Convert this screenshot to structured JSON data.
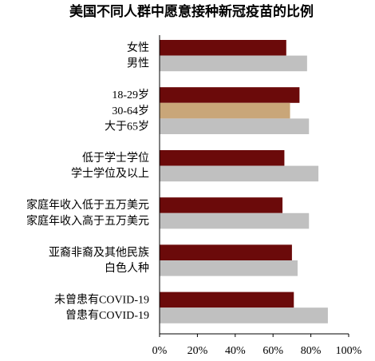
{
  "chart_data": {
    "type": "bar",
    "orientation": "horizontal",
    "title": "美国不同人群中愿意接种新冠疫苗的比例",
    "categories": [
      "女性",
      "男性",
      "18-29岁",
      "30-64岁",
      "大于65岁",
      "低于学士学位",
      "学士学位及以上",
      "家庭年收入低于五万美元",
      "家庭年收入高于五万美元",
      "亚裔非裔及其他民族",
      "白色人种",
      "未曾患有COVID-19",
      "曾患有COVID-19"
    ],
    "values": [
      67,
      78,
      74,
      69,
      79,
      66,
      84,
      65,
      79,
      70,
      73,
      71,
      89
    ],
    "colors": [
      "#6b0a0a",
      "#c0c0c0",
      "#6b0a0a",
      "#c9a679",
      "#c0c0c0",
      "#6b0a0a",
      "#c0c0c0",
      "#6b0a0a",
      "#c0c0c0",
      "#6b0a0a",
      "#c0c0c0",
      "#6b0a0a",
      "#c0c0c0"
    ],
    "xlim": [
      0,
      100
    ],
    "xticks": [
      {
        "value": 0,
        "label": "0%"
      },
      {
        "value": 20,
        "label": "20%"
      },
      {
        "value": 40,
        "label": "40%"
      },
      {
        "value": 60,
        "label": "60%"
      },
      {
        "value": 80,
        "label": "80%"
      },
      {
        "value": 100,
        "label": "100%"
      }
    ]
  }
}
